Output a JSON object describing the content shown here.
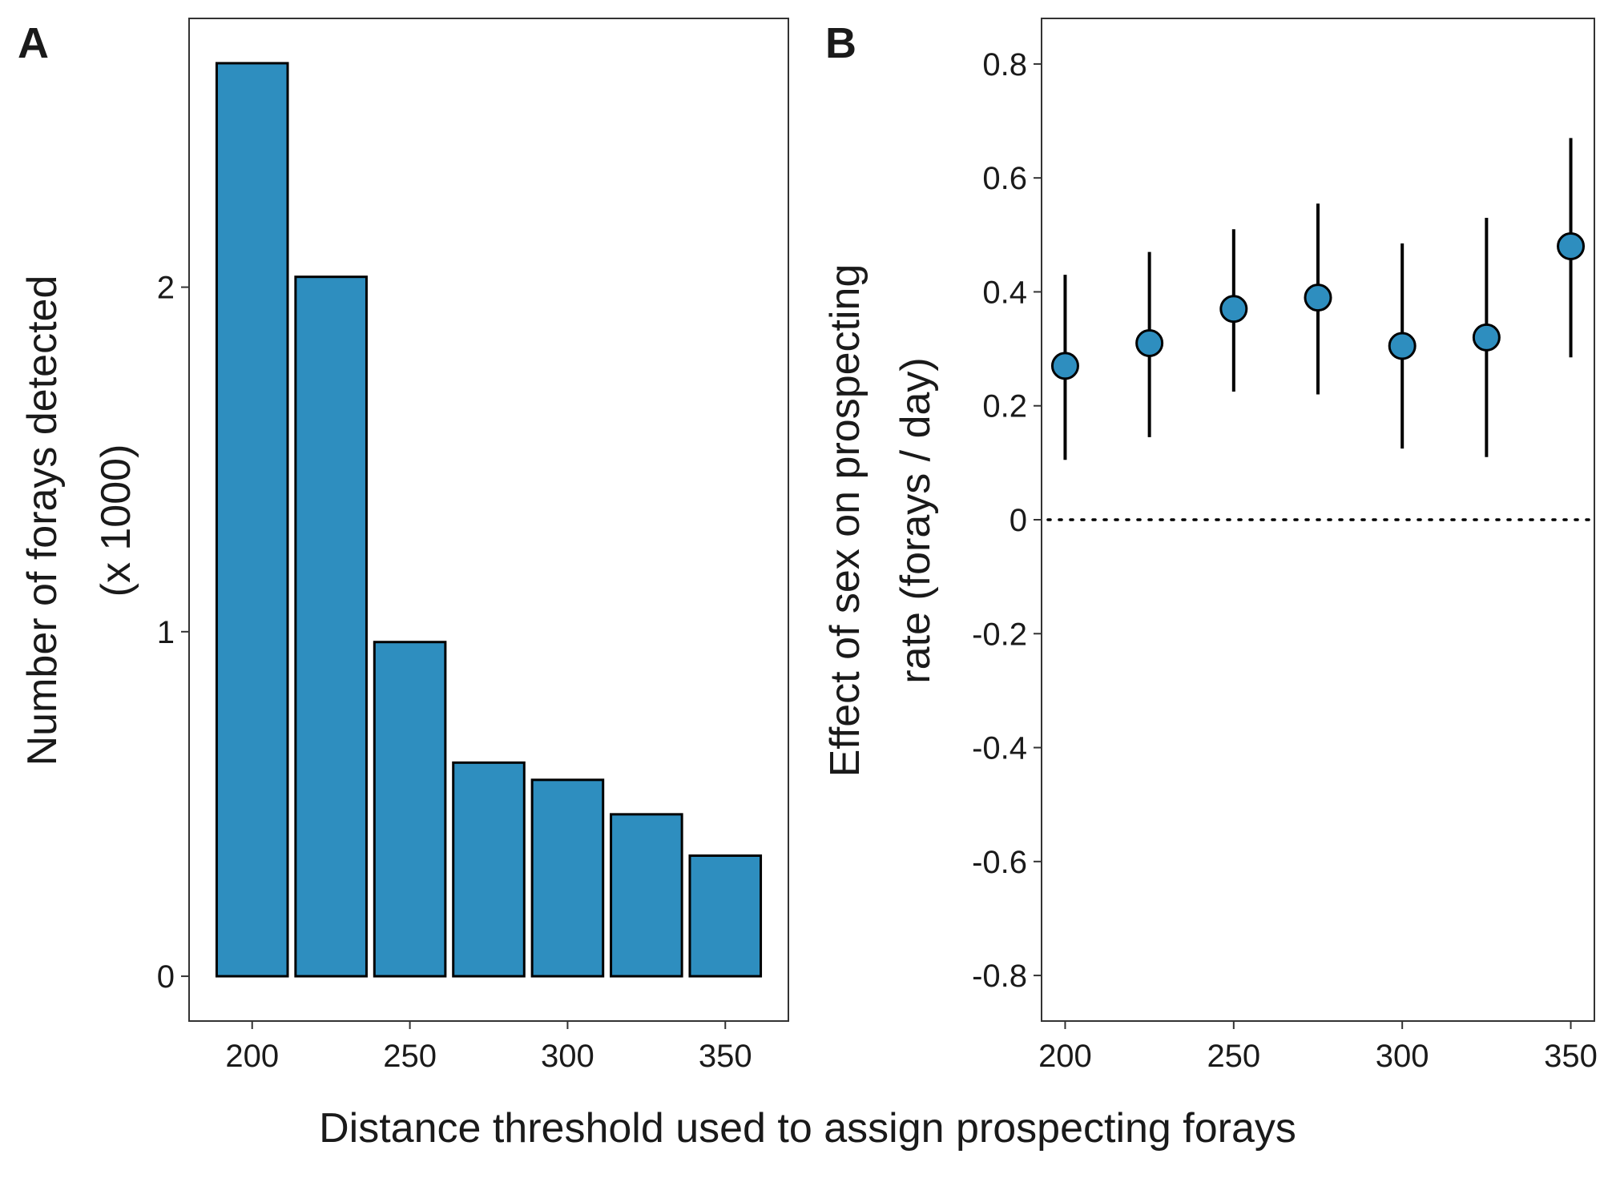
{
  "chart_data": [
    {
      "panel": "A",
      "type": "bar",
      "categories": [
        200,
        225,
        250,
        275,
        300,
        325,
        350
      ],
      "values": [
        2.65,
        2.03,
        0.97,
        0.62,
        0.57,
        0.47,
        0.35
      ],
      "ylabel_line1": "Number of forays detected",
      "ylabel_line2": "(x 1000)",
      "xlim": [
        180,
        370
      ],
      "ylim": [
        -0.13,
        2.78
      ],
      "xticks": [
        200,
        250,
        300,
        350
      ],
      "yticks": [
        0,
        1,
        2
      ],
      "xtick_labels": [
        "200",
        "250",
        "300",
        "350"
      ],
      "ytick_labels": [
        "0",
        "1",
        "2"
      ],
      "bar_color": "#2e8ebf",
      "edge_color": "#000000"
    },
    {
      "panel": "B",
      "type": "scatter",
      "x": [
        200,
        225,
        250,
        275,
        300,
        325,
        350
      ],
      "y": [
        0.27,
        0.31,
        0.37,
        0.39,
        0.305,
        0.32,
        0.48
      ],
      "lower": [
        0.105,
        0.145,
        0.225,
        0.22,
        0.125,
        0.11,
        0.285
      ],
      "upper": [
        0.43,
        0.47,
        0.51,
        0.555,
        0.485,
        0.53,
        0.67
      ],
      "ylabel_line1": "Effect of sex on prospecting",
      "ylabel_line2": "rate (forays / day)",
      "xlim": [
        193,
        357
      ],
      "ylim": [
        -0.88,
        0.88
      ],
      "xticks": [
        200,
        250,
        300,
        350
      ],
      "yticks": [
        0.8,
        0.6,
        0.4,
        0.2,
        0,
        -0.2,
        -0.4,
        -0.6,
        -0.8
      ],
      "xtick_labels": [
        "200",
        "250",
        "300",
        "350"
      ],
      "ytick_labels": [
        "0.8",
        "0.6",
        "0.4",
        "0.2",
        "0",
        "-0.2",
        "-0.4",
        "-0.6",
        "-0.8"
      ],
      "reference_line_y": 0,
      "point_color": "#2e8ebf"
    }
  ],
  "labels": {
    "panel_a": "A",
    "panel_b": "B",
    "shared_xlabel": "Distance threshold used to assign prospecting forays"
  }
}
